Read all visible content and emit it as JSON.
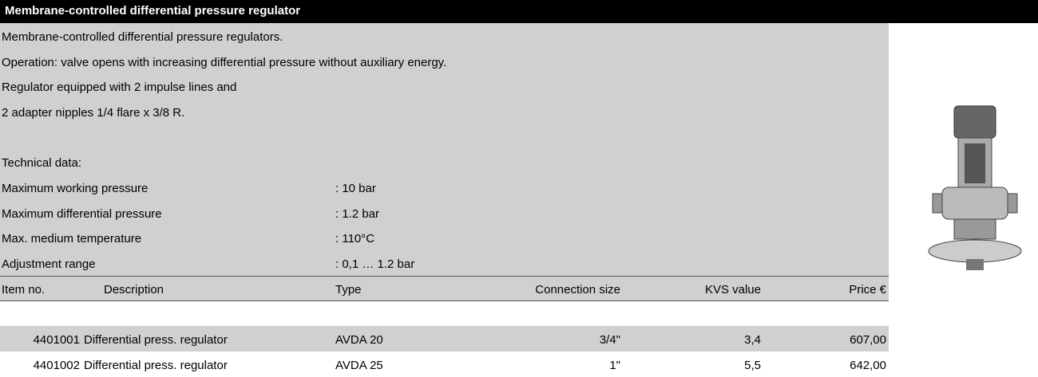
{
  "header": {
    "title": "Membrane-controlled differential pressure regulator"
  },
  "description": [
    "Membrane-controlled differential pressure regulators.",
    "Operation: valve opens with increasing differential pressure without auxiliary energy.",
    "Regulator equipped with 2 impulse lines and",
    "2 adapter nipples 1/4 flare x 3/8 R."
  ],
  "technical_data": {
    "title": "Technical data:",
    "rows": [
      {
        "label": "Maximum working pressure",
        "value": ": 10 bar"
      },
      {
        "label": "Maximum differential pressure",
        "value": ": 1.2 bar"
      },
      {
        "label": "Max. medium temperature",
        "value": ": 110°C"
      },
      {
        "label": "Adjustment range",
        "value": ": 0,1 … 1.2 bar"
      }
    ]
  },
  "table": {
    "columns": [
      "Item no.",
      "Description",
      "Type",
      "Connection size",
      "KVS value",
      "Price €"
    ],
    "rows": [
      [
        "4401001",
        "Differential press. regulator",
        "AVDA 20",
        "3/4\"",
        "3,4",
        "607,00"
      ],
      [
        "4401002",
        "Differential press. regulator",
        "AVDA 25",
        "1\"",
        "5,5",
        "642,00"
      ]
    ]
  }
}
